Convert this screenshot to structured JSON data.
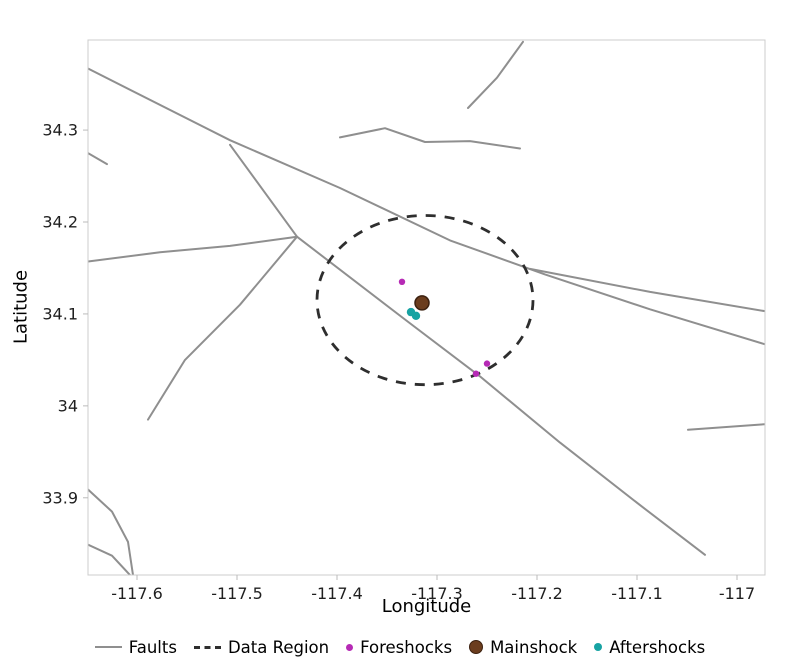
{
  "axes": {
    "xlabel": "Longitude",
    "ylabel": "Latitude"
  },
  "legend": {
    "items": [
      {
        "label": "Faults",
        "marker": "line",
        "color": "#8f8f8f",
        "size": 0
      },
      {
        "label": "Data Region",
        "marker": "dashed",
        "color": "#2e2e2e",
        "size": 0
      },
      {
        "label": "Foreshocks",
        "marker": "dot",
        "color": "#b62ab5",
        "size": 7
      },
      {
        "label": "Mainshock",
        "marker": "dot",
        "color": "#6b3d1e",
        "size": 12,
        "edge": "#3c2110"
      },
      {
        "label": "Aftershocks",
        "marker": "dot",
        "color": "#17a3a3",
        "size": 8
      }
    ]
  },
  "chart_data": {
    "type": "scatter",
    "title": "",
    "xlabel": "Longitude",
    "ylabel": "Latitude",
    "xlim": [
      -117.649,
      -116.972
    ],
    "ylim": [
      33.816,
      34.398
    ],
    "xticks": [
      -117.6,
      -117.5,
      -117.4,
      -117.3,
      -117.2,
      -117.1,
      -117.0
    ],
    "xtick_labels": [
      "-117.6",
      "-117.5",
      "-117.4",
      "-117.3",
      "-117.2",
      "-117.1",
      "-117"
    ],
    "yticks": [
      33.9,
      34.0,
      34.1,
      34.2,
      34.3
    ],
    "ytick_labels": [
      "33.9",
      "34",
      "34.1",
      "34.2",
      "34.3"
    ],
    "grid": false,
    "legend_position": "bottom",
    "styles": {
      "fault_color": "#8f8f8f",
      "fault_width": 2,
      "region_color": "#2e2e2e",
      "region_width": 2.8,
      "region_dash": "10 9",
      "foreshock_color": "#b62ab5",
      "foreshock_radius": 3.2,
      "mainshock_fill": "#6b3d1e",
      "mainshock_stroke": "#3c2110",
      "mainshock_radius": 7,
      "aftershock_color": "#17a3a3",
      "aftershock_radius": 4.2,
      "frame_color": "#cccccc",
      "tick_color": "#bbbbbb",
      "tick_text_color": "#1f1f1f"
    },
    "faults": [
      [
        [
          -117.649,
          34.367
        ],
        [
          -117.507,
          34.289
        ],
        [
          -117.397,
          34.237
        ],
        [
          -117.287,
          34.18
        ],
        [
          -117.192,
          34.143
        ],
        [
          -117.087,
          34.105
        ],
        [
          -116.972,
          34.067
        ]
      ],
      [
        [
          -117.207,
          34.149
        ],
        [
          -117.087,
          34.124
        ],
        [
          -116.972,
          34.103
        ]
      ],
      [
        [
          -117.507,
          34.284
        ],
        [
          -117.44,
          34.184
        ],
        [
          -117.332,
          34.094
        ],
        [
          -117.257,
          34.032
        ],
        [
          -117.177,
          33.96
        ],
        [
          -117.097,
          33.892
        ],
        [
          -117.032,
          33.838
        ]
      ],
      [
        [
          -117.649,
          34.157
        ],
        [
          -117.577,
          34.167
        ],
        [
          -117.507,
          34.174
        ],
        [
          -117.44,
          34.184
        ]
      ],
      [
        [
          -117.44,
          34.184
        ],
        [
          -117.497,
          34.11
        ],
        [
          -117.552,
          34.05
        ],
        [
          -117.589,
          33.985
        ]
      ],
      [
        [
          -117.214,
          34.396
        ],
        [
          -117.24,
          34.357
        ],
        [
          -117.269,
          34.324
        ]
      ],
      [
        [
          -117.397,
          34.292
        ],
        [
          -117.352,
          34.302
        ],
        [
          -117.312,
          34.287
        ],
        [
          -117.267,
          34.288
        ],
        [
          -117.217,
          34.28
        ]
      ],
      [
        [
          -117.649,
          34.275
        ],
        [
          -117.63,
          34.263
        ]
      ],
      [
        [
          -117.649,
          33.909
        ],
        [
          -117.625,
          33.885
        ],
        [
          -117.609,
          33.852
        ],
        [
          -117.604,
          33.816
        ]
      ],
      [
        [
          -117.649,
          33.849
        ],
        [
          -117.625,
          33.837
        ],
        [
          -117.607,
          33.816
        ]
      ],
      [
        [
          -117.049,
          33.974
        ],
        [
          -116.972,
          33.98
        ]
      ]
    ],
    "data_region": {
      "center": [
        -117.312,
        34.115
      ],
      "rx": 0.108,
      "ry": 0.092
    },
    "foreshocks": [
      [
        -117.335,
        34.135
      ],
      [
        -117.261,
        34.035
      ],
      [
        -117.25,
        34.046
      ]
    ],
    "mainshock": [
      [
        -117.315,
        34.112
      ]
    ],
    "aftershocks": [
      [
        -117.321,
        34.098
      ],
      [
        -117.326,
        34.102
      ]
    ]
  }
}
